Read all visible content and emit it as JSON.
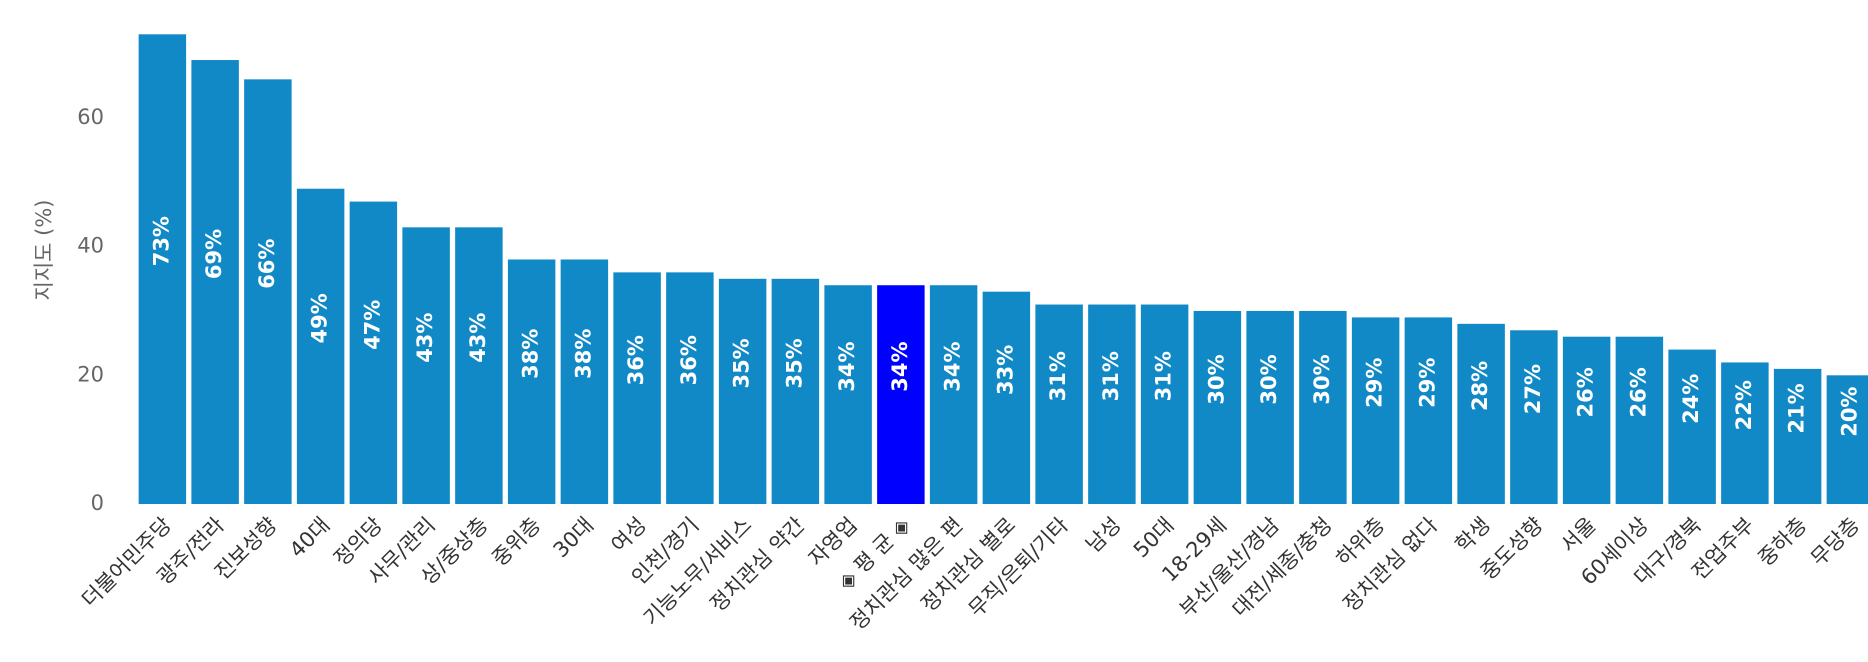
{
  "chart_data": {
    "type": "bar",
    "y_label": "지지도 (%)",
    "categories": [
      "더불어민주당",
      "광주/전라",
      "진보성향",
      "40대",
      "정의당",
      "사무/관리",
      "상/중상층",
      "중위층",
      "30대",
      "여성",
      "인천/경기",
      "기능노무/서비스",
      "정치관심 약간",
      "자영업",
      "◈ 평 균 ◈",
      "정치관심 많은 편",
      "정치관심 별로",
      "무직/은퇴/기타",
      "남성",
      "50대",
      "18-29세",
      "부산/울산/경남",
      "대전/세종/충청",
      "하위층",
      "정치관심 없다",
      "학생",
      "중도성향",
      "서울",
      "60세이상",
      "대구/경북",
      "전업주부",
      "중하층",
      "무당층"
    ],
    "values": [
      73,
      69,
      66,
      49,
      47,
      43,
      43,
      38,
      38,
      36,
      36,
      35,
      35,
      34,
      34,
      34,
      33,
      31,
      31,
      31,
      30,
      30,
      30,
      29,
      29,
      28,
      27,
      26,
      26,
      24,
      22,
      21,
      20
    ],
    "value_labels": [
      "73%",
      "69%",
      "66%",
      "49%",
      "47%",
      "43%",
      "43%",
      "38%",
      "38%",
      "36%",
      "36%",
      "35%",
      "35%",
      "34%",
      "34%",
      "34%",
      "33%",
      "31%",
      "31%",
      "31%",
      "30%",
      "30%",
      "30%",
      "29%",
      "29%",
      "28%",
      "27%",
      "26%",
      "26%",
      "24%",
      "22%",
      "21%",
      "20%"
    ],
    "colors": [
      "#1089c6",
      "#1089c6",
      "#1089c6",
      "#1089c6",
      "#1089c6",
      "#1089c6",
      "#1089c6",
      "#1089c6",
      "#1089c6",
      "#1089c6",
      "#1089c6",
      "#1089c6",
      "#1089c6",
      "#1089c6",
      "#0000ff",
      "#1089c6",
      "#1089c6",
      "#1089c6",
      "#1089c6",
      "#1089c6",
      "#1089c6",
      "#1089c6",
      "#1089c6",
      "#1089c6",
      "#1089c6",
      "#1089c6",
      "#1089c6",
      "#1089c6",
      "#1089c6",
      "#1089c6",
      "#1089c6",
      "#1089c6",
      "#1089c6"
    ],
    "ylim": [
      0,
      76
    ],
    "yticks": [
      0,
      20,
      40,
      60
    ],
    "grid": false
  }
}
